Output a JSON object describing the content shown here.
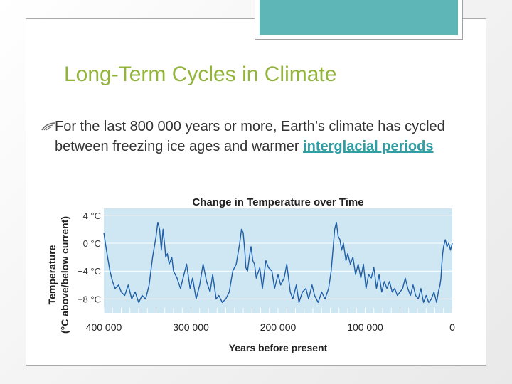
{
  "slide": {
    "title": "Long-Term Cycles in Climate",
    "bullet_icon": "swoosh-bullet-icon",
    "bullet_text": "For the last 800 000 years or more, Earth’s climate has cycled between freezing ice ages and warmer ",
    "bullet_link": "interglacial periods",
    "colors": {
      "title": "#92b43b",
      "accent": "#5fb6b7",
      "link": "#2f9fa3",
      "line": "#1e5fa8",
      "plot_bg": "#cfe6f3"
    }
  },
  "chart_data": {
    "type": "line",
    "title": "Change in Temperature over Time",
    "xlabel": "Years before present",
    "ylabel_line1": "Temperature",
    "ylabel_line2": "(°C above/below current)",
    "xlim": [
      400000,
      0
    ],
    "ylim": [
      -10,
      5
    ],
    "x_ticks": [
      400000,
      300000,
      200000,
      100000,
      0
    ],
    "x_tick_labels": [
      "400 000",
      "300 000",
      "200 000",
      "100 000",
      "0"
    ],
    "y_ticks": [
      4,
      0,
      -4,
      -8
    ],
    "y_tick_labels": [
      "4 °C",
      "0 °C",
      "−4 °C",
      "−8 °C"
    ],
    "grid": true,
    "series": [
      {
        "x": [
          400000,
          397000,
          393000,
          390000,
          387000,
          383000,
          380000,
          376000,
          372000,
          368000,
          364000,
          360000,
          356000,
          352000,
          348000,
          344000,
          340000,
          338000,
          336000,
          334000,
          332000,
          330000,
          329000,
          327000,
          325000,
          322000,
          320000,
          316000,
          312000,
          308000,
          305000,
          301000,
          298000,
          294000,
          290000,
          286000,
          282000,
          278000,
          275000,
          271000,
          268000,
          264000,
          260000,
          256000,
          252000,
          248000,
          244000,
          242000,
          240000,
          238000,
          237000,
          235000,
          233000,
          231000,
          229000,
          227000,
          225000,
          221000,
          218000,
          214000,
          211000,
          207000,
          204000,
          200000,
          197000,
          193000,
          190000,
          186000,
          183000,
          179000,
          176000,
          172000,
          168000,
          165000,
          161000,
          158000,
          154000,
          150000,
          146000,
          142000,
          139000,
          137000,
          135000,
          133000,
          131000,
          129000,
          127000,
          125000,
          122000,
          120000,
          117000,
          114000,
          111000,
          108000,
          105000,
          102000,
          99000,
          96000,
          93000,
          90000,
          87000,
          84000,
          81000,
          78000,
          75000,
          72000,
          69000,
          66000,
          63000,
          60000,
          57000,
          54000,
          51000,
          48000,
          45000,
          42000,
          39000,
          36000,
          33000,
          30000,
          27000,
          24000,
          21000,
          18000,
          16000,
          14000,
          13000,
          12000,
          11000,
          10000,
          8000,
          6000,
          4000,
          2000,
          0
        ],
        "values": [
          1.5,
          -1.0,
          -4.0,
          -5.5,
          -6.5,
          -6.0,
          -7.0,
          -7.5,
          -6.0,
          -8.0,
          -7.0,
          -8.5,
          -7.5,
          -8.0,
          -6.0,
          -2.0,
          1.0,
          3.0,
          2.0,
          -1.0,
          2.0,
          -0.5,
          -2.0,
          -1.5,
          -3.0,
          -2.0,
          -4.0,
          -5.0,
          -6.5,
          -4.5,
          -3.0,
          -6.5,
          -5.0,
          -8.0,
          -6.0,
          -3.0,
          -5.5,
          -7.0,
          -4.5,
          -8.0,
          -7.5,
          -8.5,
          -8.0,
          -7.0,
          -4.0,
          -3.0,
          0.0,
          2.0,
          1.5,
          -1.5,
          -3.5,
          -4.0,
          -2.0,
          -0.5,
          -2.5,
          -3.0,
          -5.0,
          -3.5,
          -6.5,
          -2.5,
          -3.5,
          -4.0,
          -6.5,
          -4.5,
          -6.0,
          -5.0,
          -3.0,
          -7.0,
          -8.0,
          -6.0,
          -8.5,
          -7.0,
          -6.5,
          -8.0,
          -6.0,
          -7.5,
          -8.5,
          -7.0,
          -8.0,
          -6.5,
          -4.0,
          -1.0,
          2.0,
          3.0,
          1.0,
          0.5,
          -1.0,
          0.0,
          -2.5,
          -1.5,
          -3.0,
          -2.0,
          -4.5,
          -3.0,
          -5.0,
          -3.0,
          -6.5,
          -4.5,
          -5.0,
          -3.5,
          -6.5,
          -4.5,
          -7.0,
          -5.5,
          -6.5,
          -5.5,
          -7.0,
          -6.5,
          -7.5,
          -7.0,
          -6.5,
          -5.0,
          -6.5,
          -7.5,
          -6.0,
          -7.5,
          -8.0,
          -6.5,
          -8.5,
          -7.5,
          -8.5,
          -8.0,
          -7.0,
          -8.5,
          -7.0,
          -6.0,
          -5.0,
          -3.0,
          -1.5,
          -0.5,
          0.5,
          -0.5,
          0.0,
          -1.0,
          0.0
        ]
      }
    ]
  }
}
